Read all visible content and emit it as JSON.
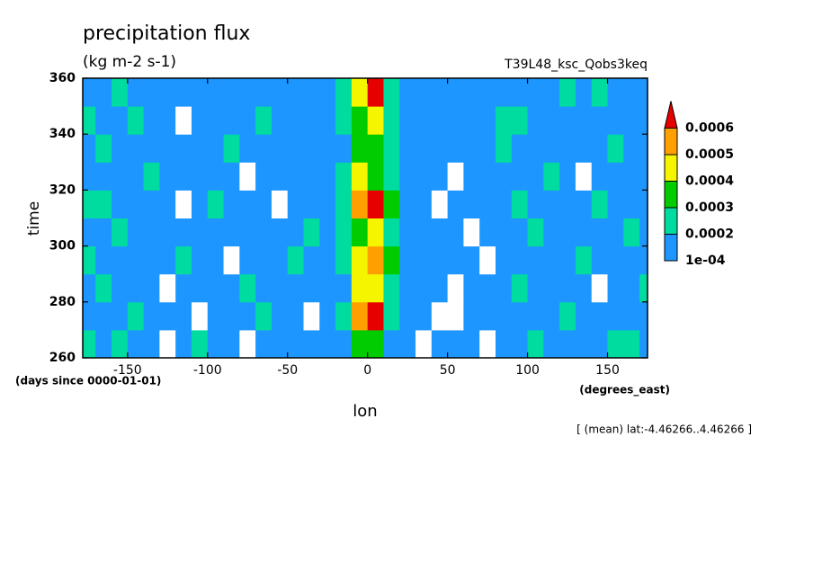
{
  "chart_data": {
    "type": "heatmap",
    "title": "precipitation flux",
    "subtitle": "(kg m-2 s-1)",
    "annotation": "T39L48_ksc_Qobs3keq",
    "x_label": "lon",
    "y_label": "time",
    "y_units": "(days since 0000-01-01)",
    "x_units": "(degrees_east)",
    "footnote": "[ (mean) lat:-4.46266..4.46266 ]",
    "xlim": [
      -178,
      175
    ],
    "ylim": [
      260,
      360
    ],
    "xticks": [
      -150,
      -100,
      -50,
      0,
      50,
      100,
      150
    ],
    "yticks": [
      260,
      280,
      300,
      320,
      340,
      360
    ],
    "x": [
      -175,
      -165,
      -155,
      -145,
      -135,
      -125,
      -115,
      -105,
      -95,
      -85,
      -75,
      -65,
      -55,
      -45,
      -35,
      -25,
      -15,
      -5,
      5,
      15,
      25,
      35,
      45,
      55,
      65,
      75,
      85,
      95,
      105,
      115,
      125,
      135,
      145,
      155,
      165,
      175
    ],
    "y": [
      265,
      275,
      285,
      295,
      305,
      315,
      325,
      335,
      345,
      355
    ],
    "levels": [
      {
        "value": 0.0001,
        "label": "1e-04"
      },
      0.0002,
      0.0003,
      0.0004,
      0.0005,
      0.0006
    ],
    "colors": [
      "#1e96ff",
      "#00dca0",
      "#00cc00",
      "#f5f500",
      "#ffa000",
      "#e60000"
    ],
    "z": [
      [
        0.00025,
        0.00015,
        0.00025,
        0.00015,
        0.00015,
        5e-05,
        0.00015,
        0.00025,
        0.00015,
        0.00015,
        5e-05,
        0.00015,
        0.00015,
        0.00015,
        0.00015,
        0.00015,
        0.00015,
        0.00035,
        0.00035,
        0.00015,
        0.00015,
        5e-05,
        0.00015,
        0.00015,
        0.00015,
        5e-05,
        0.00015,
        0.00015,
        0.00025,
        0.00015,
        0.00015,
        0.00015,
        0.00015,
        0.00025,
        0.00025,
        0.00015
      ],
      [
        0.00015,
        0.00015,
        0.00015,
        0.00025,
        0.00015,
        0.00015,
        0.00015,
        5e-05,
        0.00015,
        0.00015,
        0.00015,
        0.00025,
        0.00015,
        0.00015,
        5e-05,
        0.00015,
        0.00025,
        0.00055,
        0.00065,
        0.00025,
        0.00015,
        0.00015,
        5e-05,
        5e-05,
        0.00015,
        0.00015,
        0.00015,
        0.00015,
        0.00015,
        0.00015,
        0.00025,
        0.00015,
        0.00015,
        0.00015,
        0.00015,
        0.00015
      ],
      [
        0.00015,
        0.00025,
        0.00015,
        0.00015,
        0.00015,
        5e-05,
        0.00015,
        0.00015,
        0.00015,
        0.00015,
        0.00025,
        0.00015,
        0.00015,
        0.00015,
        0.00015,
        0.00015,
        0.00015,
        0.00045,
        0.00045,
        0.00025,
        0.00015,
        0.00015,
        0.00015,
        5e-05,
        0.00015,
        0.00015,
        0.00015,
        0.00025,
        0.00015,
        0.00015,
        0.00015,
        0.00015,
        5e-05,
        0.00015,
        0.00015,
        0.00025
      ],
      [
        0.00025,
        0.00015,
        0.00015,
        0.00015,
        0.00015,
        0.00015,
        0.00025,
        0.00015,
        0.00015,
        5e-05,
        0.00015,
        0.00015,
        0.00015,
        0.00025,
        0.00015,
        0.00015,
        0.00025,
        0.00045,
        0.00055,
        0.00035,
        0.00015,
        0.00015,
        0.00015,
        0.00015,
        0.00015,
        5e-05,
        0.00015,
        0.00015,
        0.00015,
        0.00015,
        0.00015,
        0.00025,
        0.00015,
        0.00015,
        0.00015,
        0.00015
      ],
      [
        0.00015,
        0.00015,
        0.00025,
        0.00015,
        0.00015,
        0.00015,
        0.00015,
        0.00015,
        0.00015,
        0.00015,
        0.00015,
        0.00015,
        0.00015,
        0.00015,
        0.00025,
        0.00015,
        0.00025,
        0.00035,
        0.00045,
        0.00025,
        0.00015,
        0.00015,
        0.00015,
        0.00015,
        5e-05,
        0.00015,
        0.00015,
        0.00015,
        0.00025,
        0.00015,
        0.00015,
        0.00015,
        0.00015,
        0.00015,
        0.00025,
        0.00015
      ],
      [
        0.00025,
        0.00025,
        0.00015,
        0.00015,
        0.00015,
        0.00015,
        5e-05,
        0.00015,
        0.00025,
        0.00015,
        0.00015,
        0.00015,
        5e-05,
        0.00015,
        0.00015,
        0.00015,
        0.00025,
        0.00055,
        0.00065,
        0.00035,
        0.00015,
        0.00015,
        5e-05,
        0.00015,
        0.00015,
        0.00015,
        0.00015,
        0.00025,
        0.00015,
        0.00015,
        0.00015,
        0.00015,
        0.00025,
        0.00015,
        0.00015,
        0.00015
      ],
      [
        0.00015,
        0.00015,
        0.00015,
        0.00015,
        0.00025,
        0.00015,
        0.00015,
        0.00015,
        0.00015,
        0.00015,
        5e-05,
        0.00015,
        0.00015,
        0.00015,
        0.00015,
        0.00015,
        0.00025,
        0.00045,
        0.00035,
        0.00025,
        0.00015,
        0.00015,
        0.00015,
        5e-05,
        0.00015,
        0.00015,
        0.00015,
        0.00015,
        0.00015,
        0.00025,
        0.00015,
        5e-05,
        0.00015,
        0.00015,
        0.00015,
        0.00015
      ],
      [
        0.00015,
        0.00025,
        0.00015,
        0.00015,
        0.00015,
        0.00015,
        0.00015,
        0.00015,
        0.00015,
        0.00025,
        0.00015,
        0.00015,
        0.00015,
        0.00015,
        0.00015,
        0.00015,
        0.00015,
        0.00035,
        0.00035,
        0.00025,
        0.00015,
        0.00015,
        0.00015,
        0.00015,
        0.00015,
        0.00015,
        0.00025,
        0.00015,
        0.00015,
        0.00015,
        0.00015,
        0.00015,
        0.00015,
        0.00025,
        0.00015,
        0.00015
      ],
      [
        0.00025,
        0.00015,
        0.00015,
        0.00025,
        0.00015,
        0.00015,
        5e-05,
        0.00015,
        0.00015,
        0.00015,
        0.00015,
        0.00025,
        0.00015,
        0.00015,
        0.00015,
        0.00015,
        0.00025,
        0.00035,
        0.00045,
        0.00025,
        0.00015,
        0.00015,
        0.00015,
        0.00015,
        0.00015,
        0.00015,
        0.00025,
        0.00025,
        0.00015,
        0.00015,
        0.00015,
        0.00015,
        0.00015,
        0.00015,
        0.00015,
        0.00015
      ],
      [
        0.00015,
        0.00015,
        0.00025,
        0.00015,
        0.00015,
        0.00015,
        0.00015,
        0.00015,
        0.00015,
        0.00015,
        0.00015,
        0.00015,
        0.00015,
        0.00015,
        0.00015,
        0.00015,
        0.00025,
        0.00045,
        0.00065,
        0.00025,
        0.00015,
        0.00015,
        0.00015,
        0.00015,
        0.00015,
        0.00015,
        0.00015,
        0.00015,
        0.00015,
        0.00015,
        0.00025,
        0.00015,
        0.00025,
        0.00015,
        0.00015,
        0.00015
      ]
    ]
  }
}
